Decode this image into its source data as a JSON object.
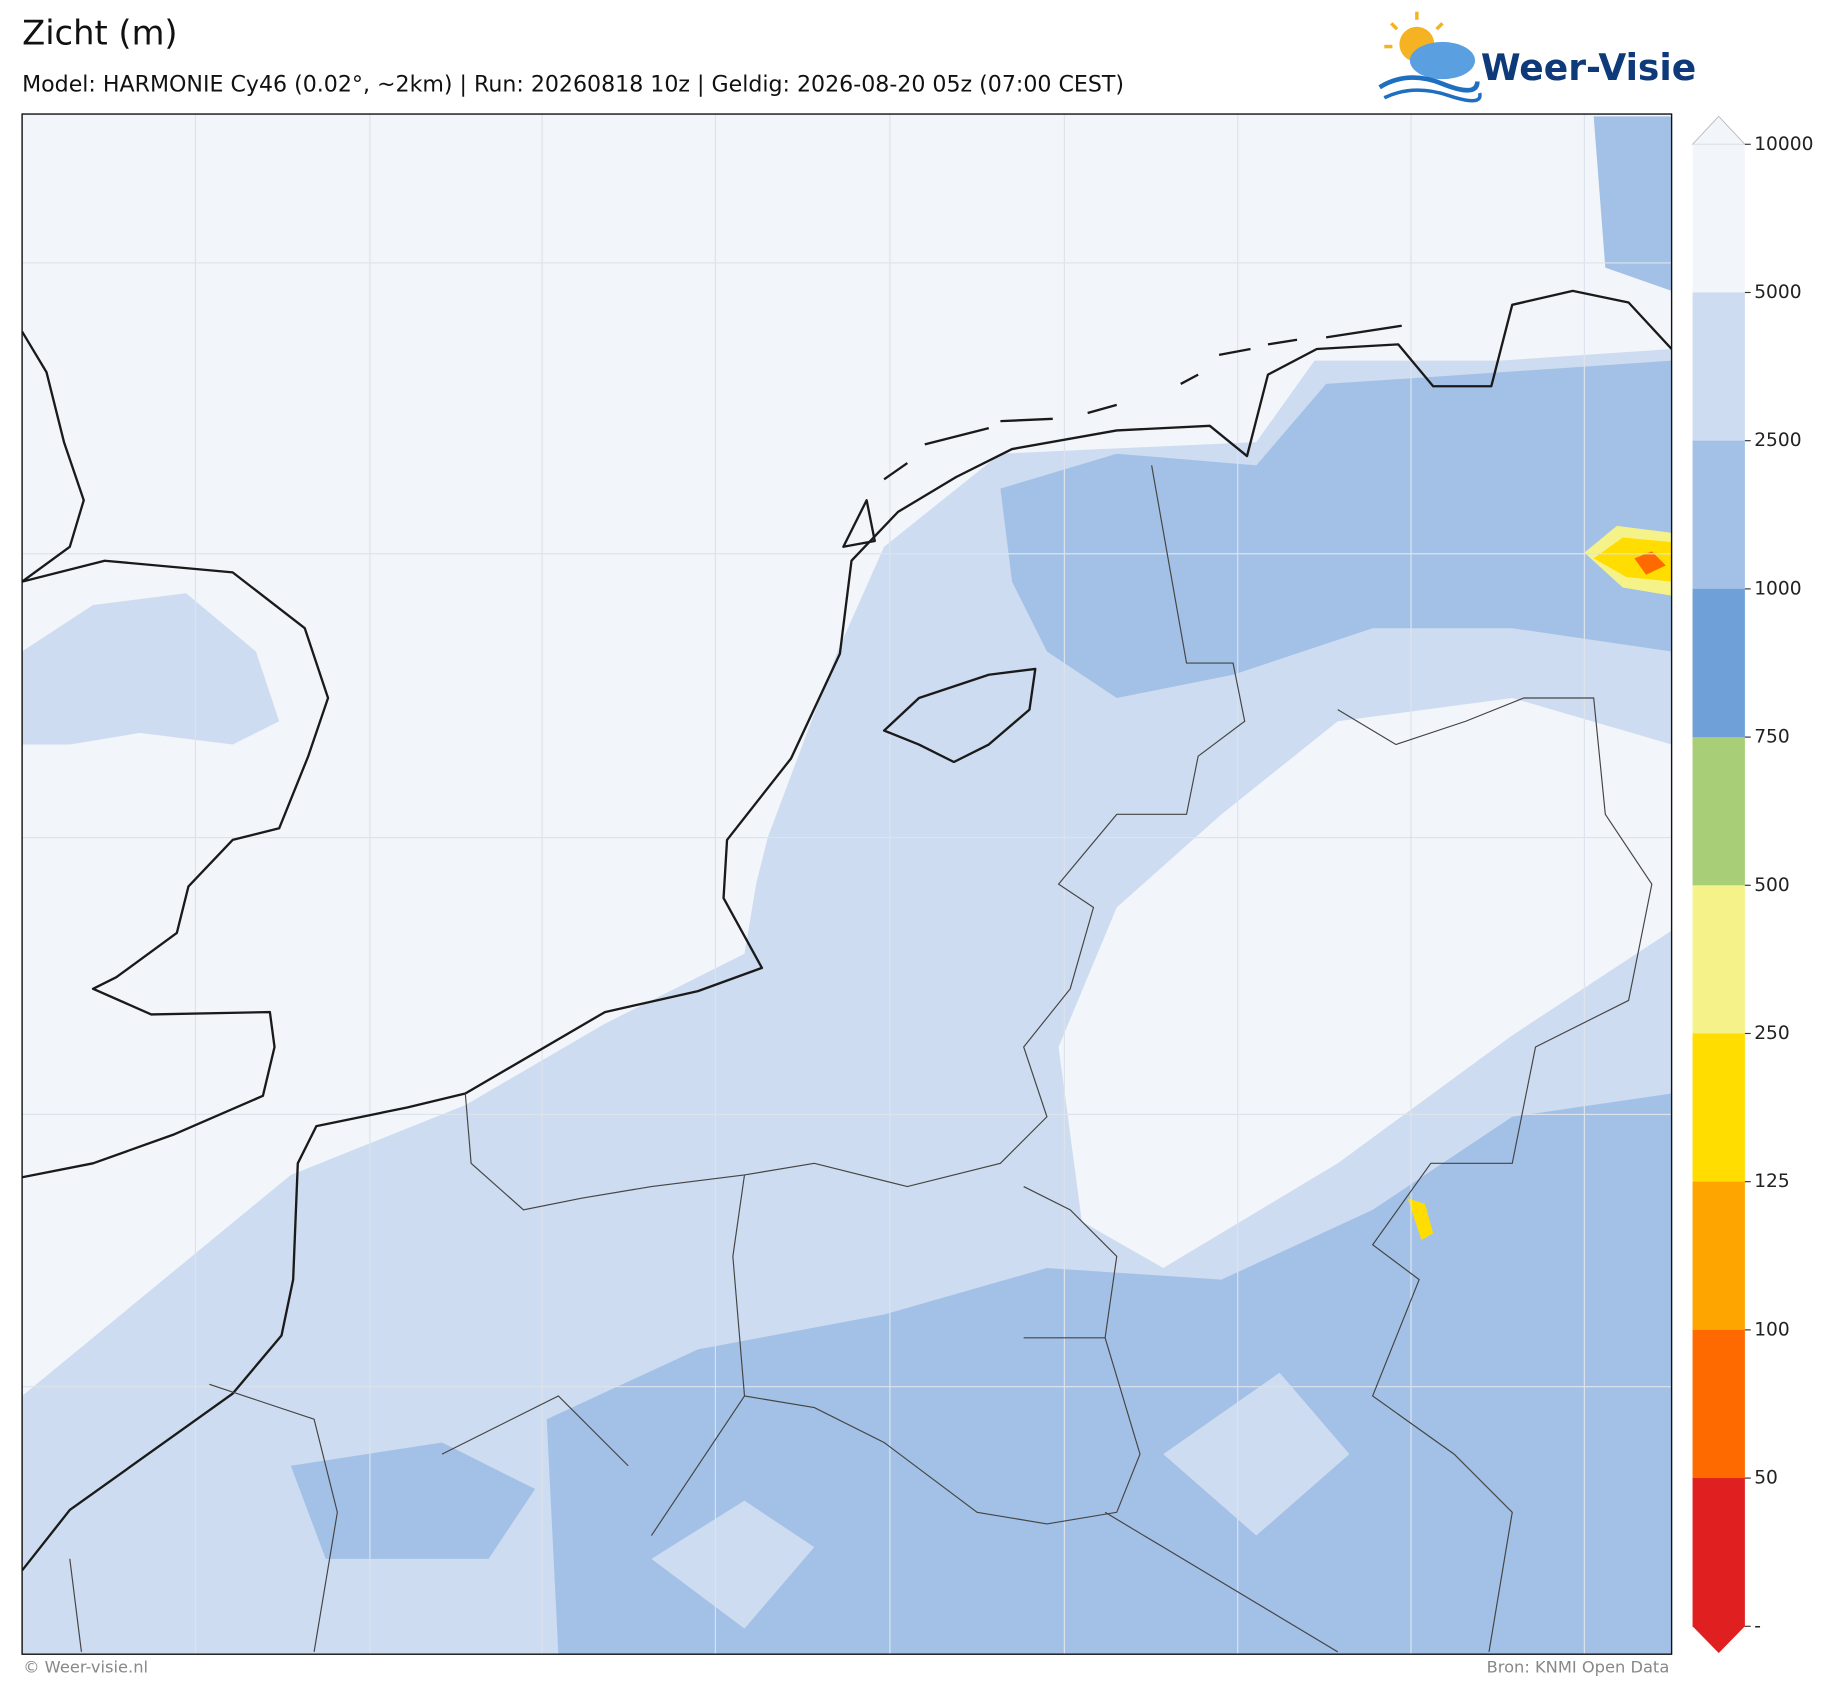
{
  "title": "Zicht (m)",
  "subtitle": "Model: HARMONIE Cy46 (0.02°, ~2km)  |  Run: 20260818 10z  |  Geldig: 2026-08-20 05z (07:00 CEST)",
  "logo": "Weer-Visie",
  "colorbar": {
    "ticks": [
      10000,
      5000,
      2500,
      1000,
      750,
      500,
      250,
      125,
      100,
      50
    ],
    "bottom_label": "-",
    "colors": [
      "#f2f5fa",
      "#cddcf0",
      "#a3c1e6",
      "#6fa0d8",
      "#a8cf78",
      "#f5f28a",
      "#ffdd00",
      "#ffa500",
      "#ff6a00",
      "#e02020"
    ]
  },
  "footer_left": "© Weer-visie.nl",
  "footer_right": "Bron: KNMI Open Data"
}
